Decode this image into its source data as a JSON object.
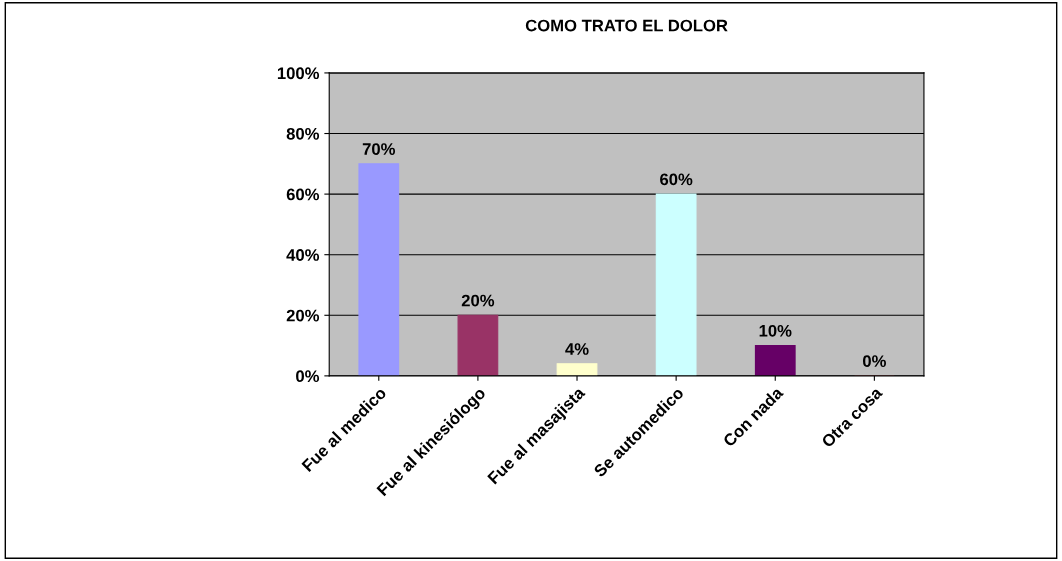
{
  "chart_data": {
    "type": "bar",
    "title": "COMO TRATO EL DOLOR",
    "categories": [
      "Fue al medico",
      "Fue al kinesiólogo",
      "Fue al masajista",
      "Se automedico",
      "Con nada",
      "Otra cosa"
    ],
    "values": [
      70,
      20,
      4,
      60,
      10,
      0
    ],
    "colors": [
      "#9999ff",
      "#993366",
      "#ffffcc",
      "#ccffff",
      "#660066",
      "#ff8080"
    ],
    "value_labels": [
      "70%",
      "20%",
      "4%",
      "60%",
      "10%",
      "0%"
    ],
    "ylim": [
      0,
      100
    ],
    "yticks": [
      {
        "value": 0,
        "label": "0%"
      },
      {
        "value": 20,
        "label": "20%"
      },
      {
        "value": 40,
        "label": "40%"
      },
      {
        "value": 60,
        "label": "60%"
      },
      {
        "value": 80,
        "label": "80%"
      },
      {
        "value": 100,
        "label": "100%"
      }
    ],
    "grid": "y"
  }
}
